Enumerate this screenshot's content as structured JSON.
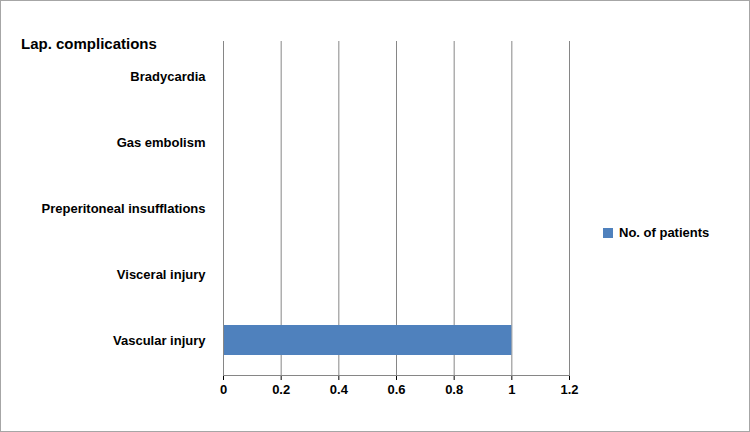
{
  "chart_data": {
    "type": "bar",
    "title": "Lap. complications",
    "orientation": "horizontal",
    "categories": [
      "Bradycardia",
      "Gas embolism",
      "Preperitoneal insufflations",
      "Visceral injury",
      "Vascular injury"
    ],
    "series": [
      {
        "name": "No. of patients",
        "color": "#4f81bd",
        "values": [
          0,
          0,
          0,
          0,
          1
        ]
      }
    ],
    "xlim": [
      0,
      1.2
    ],
    "xticks": [
      0,
      0.2,
      0.4,
      0.6,
      0.8,
      1,
      1.2
    ],
    "grid": true,
    "legend": "right"
  }
}
